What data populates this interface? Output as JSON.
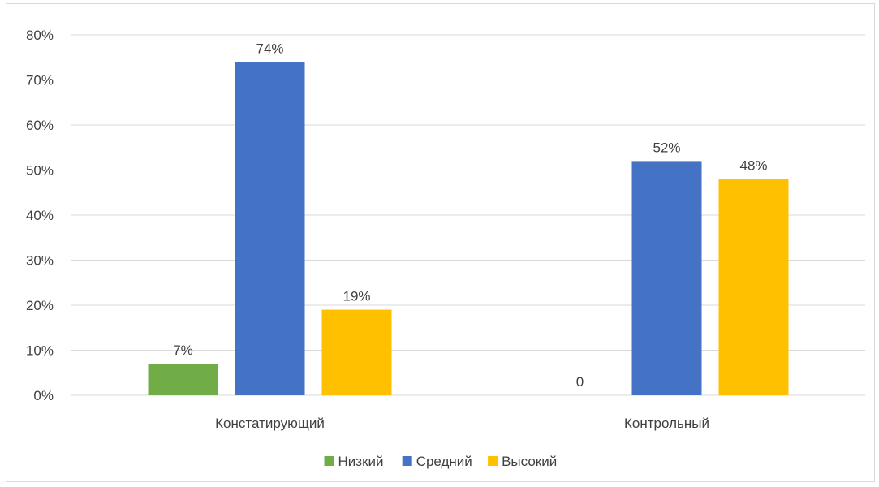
{
  "chart_data": {
    "type": "bar",
    "title": "",
    "xlabel": "",
    "ylabel": "",
    "categories": [
      "Констатирующий",
      "Контрольный"
    ],
    "series": [
      {
        "name": "Низкий",
        "values": [
          7,
          0
        ],
        "labels": [
          "7%",
          "0"
        ],
        "color": "#70ad47"
      },
      {
        "name": "Средний",
        "values": [
          74,
          52
        ],
        "labels": [
          "74%",
          "52%"
        ],
        "color": "#4472c4"
      },
      {
        "name": "Высокий",
        "values": [
          19,
          48
        ],
        "labels": [
          "19%",
          "48%"
        ],
        "color": "#ffc000"
      }
    ],
    "ylim": [
      0,
      80
    ],
    "yticks": [
      {
        "value": 0,
        "label": "0%"
      },
      {
        "value": 10,
        "label": "10%"
      },
      {
        "value": 20,
        "label": "20%"
      },
      {
        "value": 30,
        "label": "30%"
      },
      {
        "value": 40,
        "label": "40%"
      },
      {
        "value": 50,
        "label": "50%"
      },
      {
        "value": 60,
        "label": "60%"
      },
      {
        "value": 70,
        "label": "70%"
      },
      {
        "value": 80,
        "label": "80%"
      }
    ],
    "grid": true,
    "gridline_color": "#d9d9d9",
    "legend_position": "bottom"
  }
}
